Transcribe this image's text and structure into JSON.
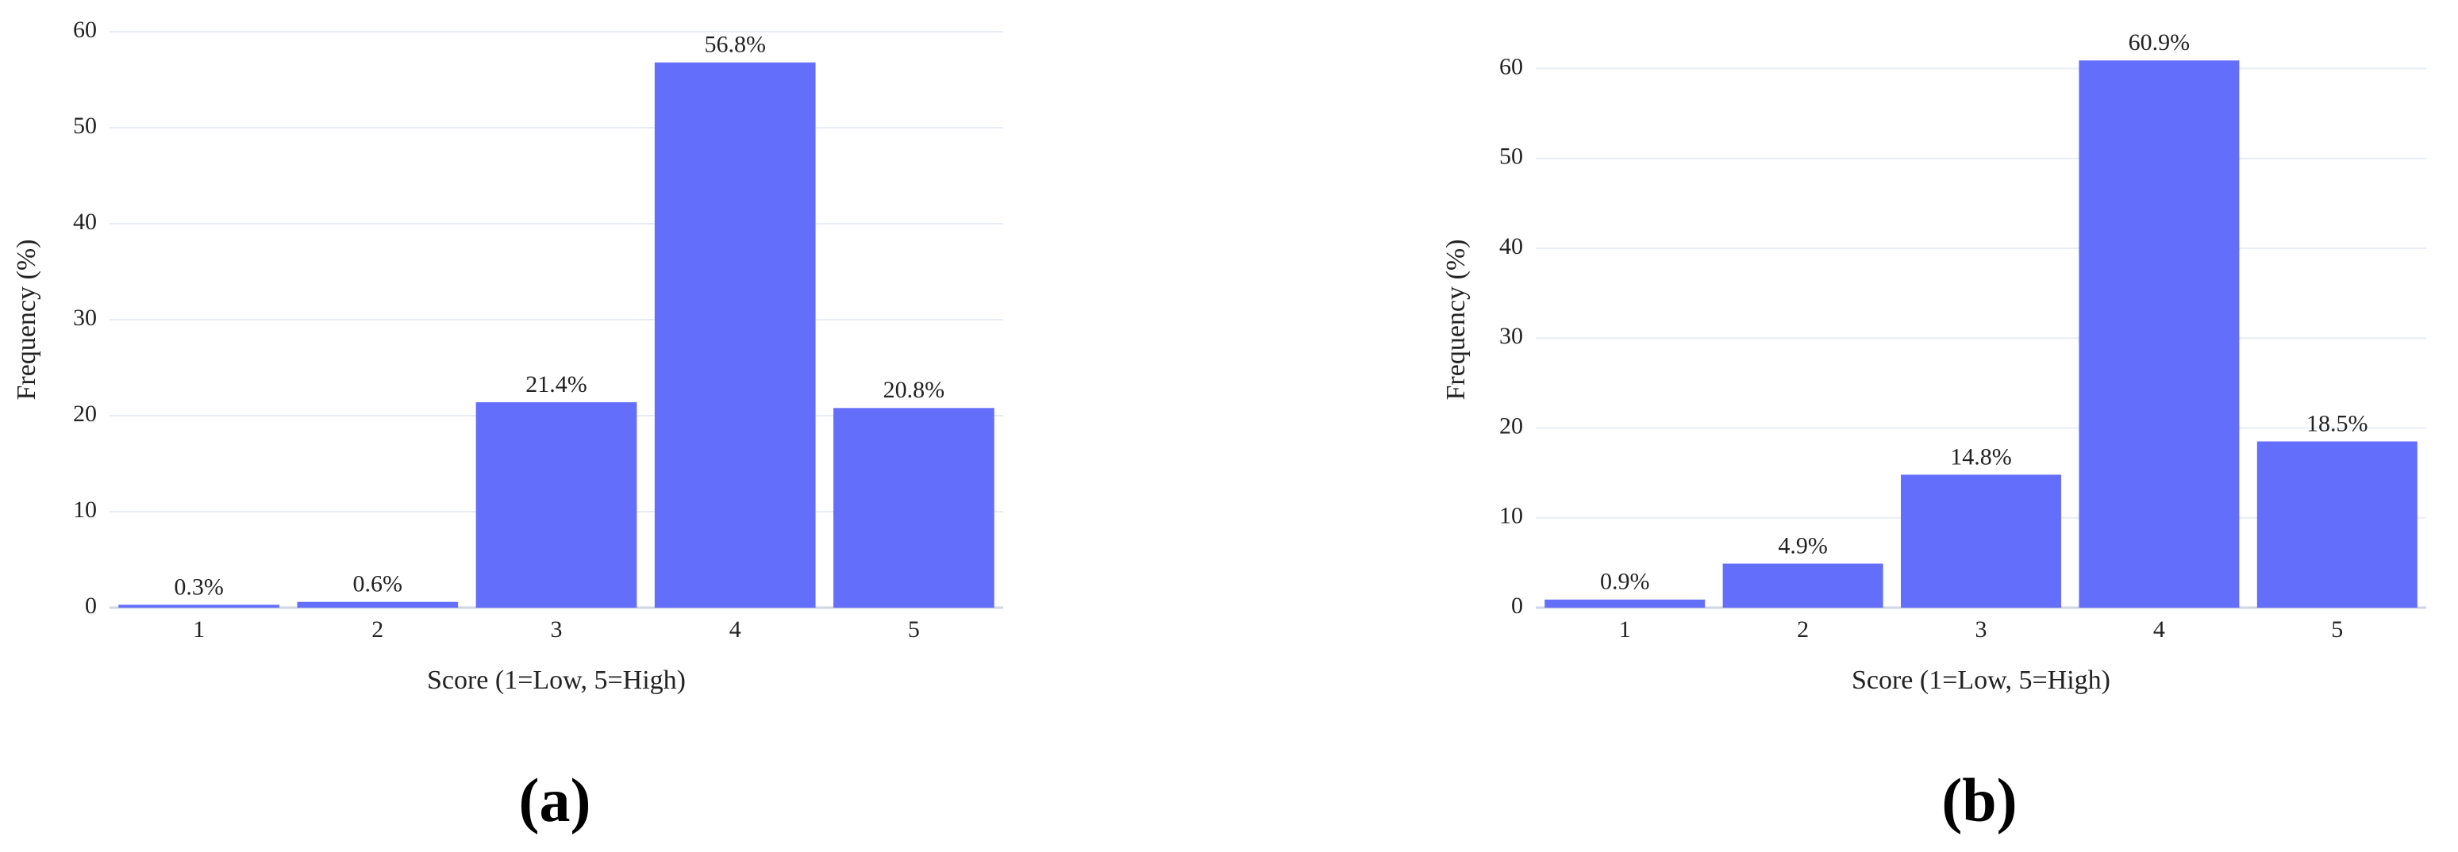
{
  "chart_data": [
    {
      "type": "bar",
      "label": "(a)",
      "x_label": "Score (1=Low, 5=High)",
      "y_label": "Frequency (%)",
      "categories": [
        "1",
        "2",
        "3",
        "4",
        "5"
      ],
      "values": [
        0.3,
        0.6,
        21.4,
        56.8,
        20.8
      ],
      "value_labels": [
        "0.3%",
        "0.6%",
        "21.4%",
        "56.8%",
        "20.8%"
      ],
      "color": "#636efa",
      "ylim": [
        0,
        60
      ],
      "yticks": [
        0,
        10,
        20,
        30,
        40,
        50,
        60
      ],
      "grid": true
    },
    {
      "type": "bar",
      "label": "(b)",
      "x_label": "Score (1=Low, 5=High)",
      "y_label": "Frequency (%)",
      "categories": [
        "1",
        "2",
        "3",
        "4",
        "5"
      ],
      "values": [
        0.9,
        4.9,
        14.8,
        60.9,
        18.5
      ],
      "value_labels": [
        "0.9%",
        "4.9%",
        "14.8%",
        "60.9%",
        "18.5%"
      ],
      "color": "#636efa",
      "ylim": [
        0,
        64.1
      ],
      "yticks": [
        0,
        10,
        20,
        30,
        40,
        50,
        60
      ],
      "grid": true
    }
  ]
}
